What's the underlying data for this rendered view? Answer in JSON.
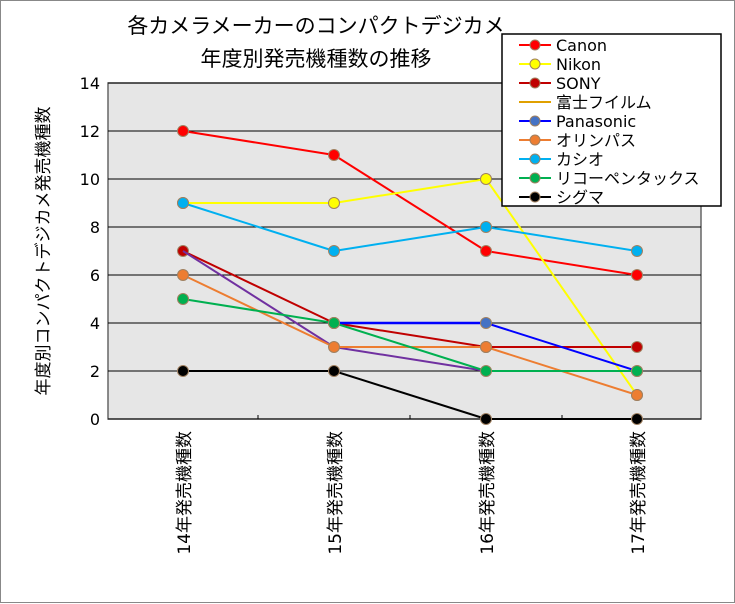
{
  "chart_data": {
    "type": "line",
    "title": [
      "各カメラメーカーのコンパクトデジカメ",
      "年度別発売機種数の推移"
    ],
    "ylabel": "年度別コンパクトデジカメ発売機種数",
    "xlabel": "",
    "categories": [
      "14年発売機種数",
      "15年発売機種数",
      "16年発売機種数",
      "17年発売機種数"
    ],
    "ylim": [
      0,
      14
    ],
    "yticks": [
      0,
      2,
      4,
      6,
      8,
      10,
      12,
      14
    ],
    "grid": true,
    "legend_position": "top-right",
    "series": [
      {
        "name": "Canon",
        "color": "#ff0000",
        "marker": true,
        "values": [
          12,
          11,
          7,
          6
        ]
      },
      {
        "name": "Nikon",
        "color": "#ffff00",
        "marker": true,
        "values": [
          9,
          9,
          10,
          1
        ]
      },
      {
        "name": "SONY",
        "color": "#c00000",
        "marker": true,
        "values": [
          7,
          4,
          3,
          3
        ]
      },
      {
        "name": "富士フイルム",
        "color": "#7030a0",
        "legend_color": "#e0a000",
        "marker": false,
        "values": [
          7,
          3,
          2,
          null
        ]
      },
      {
        "name": "Panasonic",
        "color": "#0000ff",
        "marker_color": "#4472c4",
        "marker": true,
        "values": [
          null,
          4,
          4,
          2
        ]
      },
      {
        "name": "オリンパス",
        "color": "#ed7d31",
        "marker": true,
        "values": [
          6,
          3,
          3,
          1
        ]
      },
      {
        "name": "カシオ",
        "color": "#00b0f0",
        "marker": true,
        "values": [
          9,
          7,
          8,
          7
        ]
      },
      {
        "name": "リコーペンタックス",
        "color": "#00b050",
        "marker": true,
        "values": [
          5,
          4,
          2,
          2
        ]
      },
      {
        "name": "シグマ",
        "color": "#000000",
        "marker": true,
        "values": [
          2,
          2,
          0,
          0
        ]
      }
    ]
  }
}
